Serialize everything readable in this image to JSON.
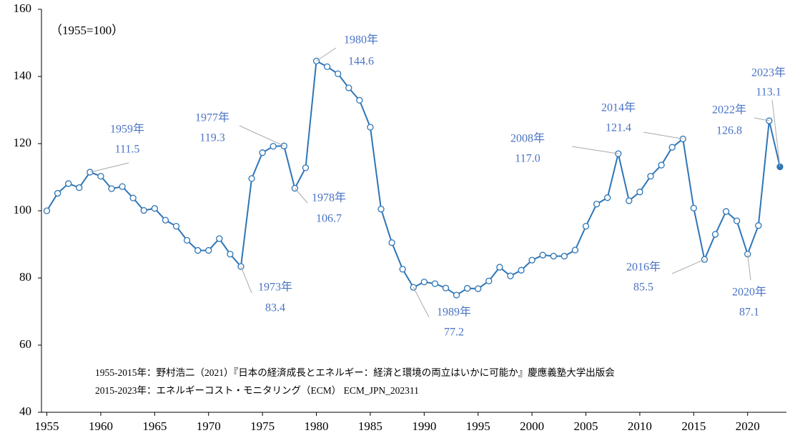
{
  "chart_data": {
    "type": "line",
    "subtitle": "（1955=100）",
    "x": [
      1955,
      1956,
      1957,
      1958,
      1959,
      1960,
      1961,
      1962,
      1963,
      1964,
      1965,
      1966,
      1967,
      1968,
      1969,
      1970,
      1971,
      1972,
      1973,
      1974,
      1975,
      1976,
      1977,
      1978,
      1979,
      1980,
      1981,
      1982,
      1983,
      1984,
      1985,
      1986,
      1987,
      1988,
      1989,
      1990,
      1991,
      1992,
      1993,
      1994,
      1995,
      1996,
      1997,
      1998,
      1999,
      2000,
      2001,
      2002,
      2003,
      2004,
      2005,
      2006,
      2007,
      2008,
      2009,
      2010,
      2011,
      2012,
      2013,
      2014,
      2015,
      2016,
      2017,
      2018,
      2019,
      2020,
      2021,
      2022,
      2023
    ],
    "series": [
      {
        "color": "#2e75b6",
        "values": [
          100,
          105.2,
          108.1,
          106.9,
          111.5,
          110.3,
          106.6,
          107.2,
          103.8,
          100.1,
          100.7,
          97.2,
          95.4,
          91.2,
          88.2,
          88.2,
          91.7,
          87.1,
          83.4,
          109.6,
          117.3,
          119.2,
          119.3,
          106.7,
          112.8,
          144.6,
          142.9,
          140.8,
          136.6,
          132.9,
          124.9,
          100.5,
          90.5,
          82.6,
          77.2,
          78.8,
          78.3,
          77.0,
          74.9,
          76.9,
          76.8,
          79.1,
          83.2,
          80.6,
          82.3,
          85.3,
          86.8,
          86.5,
          86.5,
          88.3,
          95.4,
          102.0,
          103.9,
          117.0,
          103.0,
          105.6,
          110.3,
          113.6,
          118.9,
          121.4,
          100.8,
          85.5,
          93.0,
          99.8,
          97.0,
          87.1,
          95.6,
          126.8,
          113.1
        ]
      }
    ],
    "xlim": [
      1954.5,
      2023.6
    ],
    "xticks": [
      1955,
      1960,
      1965,
      1970,
      1975,
      1980,
      1985,
      1990,
      1995,
      2000,
      2005,
      2010,
      2015,
      2020
    ],
    "ylim": [
      40,
      160
    ],
    "yticks": [
      40,
      60,
      80,
      100,
      120,
      140,
      160
    ],
    "annotations": [
      {
        "text": "1959年",
        "value_label": "111.5"
      },
      {
        "text": "1977年",
        "value_label": "119.3"
      },
      {
        "text": "1973年",
        "value_label": "83.4"
      },
      {
        "text": "1978年",
        "value_label": "106.7"
      },
      {
        "text": "1980年",
        "value_label": "144.6"
      },
      {
        "text": "1989年",
        "value_label": "77.2"
      },
      {
        "text": "2008年",
        "value_label": "117.0"
      },
      {
        "text": "2014年",
        "value_label": "121.4"
      },
      {
        "text": "2016年",
        "value_label": "85.5"
      },
      {
        "text": "2020年",
        "value_label": "87.1"
      },
      {
        "text": "2022年",
        "value_label": "126.8"
      },
      {
        "text": "2023年",
        "value_label": "113.1"
      }
    ],
    "notes": [
      "1955-2015年：野村浩二（2021）『日本の経済成長とエネルギー：経済と環境の両立はいかに可能か』慶應義塾大学出版会",
      "2015-2023年：エネルギーコスト・モニタリング（ECM） ECM_JPN_202311"
    ]
  }
}
